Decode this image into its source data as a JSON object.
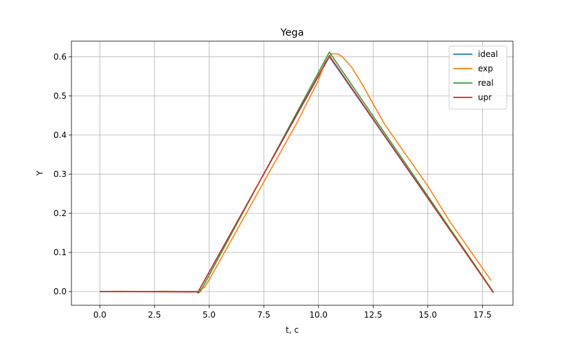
{
  "chart_data": {
    "type": "line",
    "title": "Yega",
    "xlabel": "t, c",
    "ylabel": "Y",
    "xlim": [
      -1.3,
      18.9
    ],
    "ylim": [
      -0.035,
      0.64
    ],
    "xticks": [
      0.0,
      2.5,
      5.0,
      7.5,
      10.0,
      12.5,
      15.0,
      17.5
    ],
    "xtick_labels": [
      "0.0",
      "2.5",
      "5.0",
      "7.5",
      "10.0",
      "12.5",
      "15.0",
      "17.5"
    ],
    "yticks": [
      0.0,
      0.1,
      0.2,
      0.3,
      0.4,
      0.5,
      0.6
    ],
    "ytick_labels": [
      "0.0",
      "0.1",
      "0.2",
      "0.3",
      "0.4",
      "0.5",
      "0.6"
    ],
    "grid": true,
    "legend_position": "top-right",
    "series": [
      {
        "name": "ideal",
        "color": "#1f77b4",
        "x": [
          0,
          4.5,
          10.5,
          18
        ],
        "y": [
          0,
          0,
          0.6,
          -0.002
        ]
      },
      {
        "name": "exp",
        "color": "#ff7f0e",
        "x": [
          0,
          1,
          2,
          3,
          4,
          4.5,
          4.8,
          5.0,
          5.3,
          5.7,
          6.2,
          7.0,
          8.0,
          9.0,
          10.0,
          10.3,
          10.6,
          10.9,
          11.1,
          11.5,
          12.0,
          12.5,
          13.0,
          14.0,
          15.0,
          16.0,
          17.0,
          17.9
        ],
        "y": [
          0,
          0.001,
          0,
          0.001,
          -0.001,
          0,
          0.012,
          0.03,
          0.06,
          0.1,
          0.15,
          0.23,
          0.33,
          0.43,
          0.54,
          0.585,
          0.608,
          0.607,
          0.6,
          0.575,
          0.53,
          0.48,
          0.43,
          0.35,
          0.27,
          0.18,
          0.1,
          0.028
        ]
      },
      {
        "name": "real",
        "color": "#2ca02c",
        "x": [
          0,
          4.4,
          4.5,
          4.6,
          10.5,
          18
        ],
        "y": [
          0,
          0,
          -0.004,
          0,
          0.612,
          -0.001
        ]
      },
      {
        "name": "upr",
        "color": "#d62728",
        "x": [
          0,
          4.5,
          10.5,
          18
        ],
        "y": [
          0,
          -0.001,
          0.603,
          -0.003
        ]
      }
    ]
  }
}
